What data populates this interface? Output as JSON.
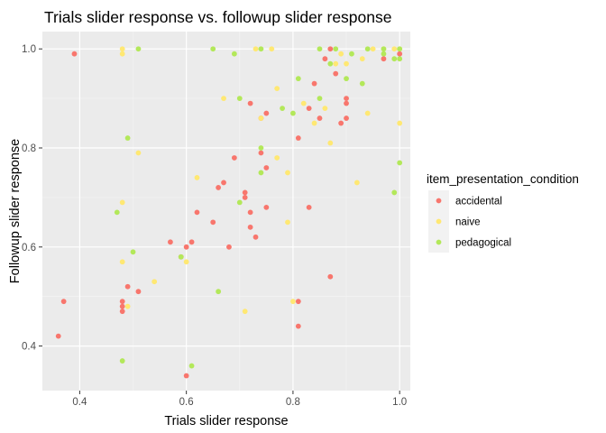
{
  "chart_data": {
    "type": "scatter",
    "title": "Trials slider response vs. followup slider response",
    "xlabel": "Trials slider response",
    "ylabel": "Followup slider response",
    "xlim": [
      0.33,
      1.02
    ],
    "ylim": [
      0.31,
      1.035
    ],
    "x_ticks": [
      0.4,
      0.6,
      0.8,
      1.0
    ],
    "x_tick_labels": [
      "0.4",
      "0.6",
      "0.8",
      "1.0"
    ],
    "y_ticks": [
      0.4,
      0.6,
      0.8,
      1.0
    ],
    "y_tick_labels": [
      "0.4",
      "0.6",
      "0.8",
      "1.0"
    ],
    "grid": true,
    "legend": {
      "title": "item_presentation_condition",
      "position": "right"
    },
    "series": [
      {
        "name": "accidental",
        "color": "#F8766D",
        "points": [
          [
            0.36,
            0.42
          ],
          [
            0.37,
            0.49
          ],
          [
            0.39,
            0.99
          ],
          [
            0.48,
            0.49
          ],
          [
            0.48,
            0.48
          ],
          [
            0.48,
            0.47
          ],
          [
            0.49,
            0.52
          ],
          [
            0.51,
            0.51
          ],
          [
            0.57,
            0.61
          ],
          [
            0.59,
            0.58
          ],
          [
            0.6,
            0.6
          ],
          [
            0.6,
            0.34
          ],
          [
            0.61,
            0.61
          ],
          [
            0.62,
            0.67
          ],
          [
            0.65,
            0.65
          ],
          [
            0.66,
            0.72
          ],
          [
            0.67,
            0.73
          ],
          [
            0.68,
            0.6
          ],
          [
            0.69,
            0.78
          ],
          [
            0.71,
            0.71
          ],
          [
            0.71,
            0.7
          ],
          [
            0.72,
            0.89
          ],
          [
            0.72,
            0.67
          ],
          [
            0.72,
            0.64
          ],
          [
            0.73,
            0.62
          ],
          [
            0.74,
            0.79
          ],
          [
            0.74,
            0.86
          ],
          [
            0.75,
            0.87
          ],
          [
            0.75,
            0.76
          ],
          [
            0.75,
            0.68
          ],
          [
            0.81,
            0.82
          ],
          [
            0.81,
            0.49
          ],
          [
            0.81,
            0.44
          ],
          [
            0.83,
            0.68
          ],
          [
            0.83,
            0.88
          ],
          [
            0.84,
            0.93
          ],
          [
            0.85,
            0.86
          ],
          [
            0.86,
            0.98
          ],
          [
            0.87,
            1.0
          ],
          [
            0.87,
            0.54
          ],
          [
            0.88,
            0.95
          ],
          [
            0.89,
            0.85
          ],
          [
            0.9,
            0.9
          ],
          [
            0.9,
            0.89
          ],
          [
            0.9,
            0.86
          ],
          [
            0.97,
            0.98
          ],
          [
            1.0,
            0.99
          ]
        ]
      },
      {
        "name": "naive",
        "color": "#FFE873",
        "points": [
          [
            0.48,
            1.0
          ],
          [
            0.48,
            0.99
          ],
          [
            0.48,
            0.69
          ],
          [
            0.48,
            0.57
          ],
          [
            0.49,
            0.48
          ],
          [
            0.51,
            0.79
          ],
          [
            0.54,
            0.53
          ],
          [
            0.6,
            0.57
          ],
          [
            0.62,
            0.74
          ],
          [
            0.67,
            0.9
          ],
          [
            0.71,
            0.47
          ],
          [
            0.73,
            1.0
          ],
          [
            0.74,
            0.86
          ],
          [
            0.76,
            1.0
          ],
          [
            0.77,
            0.92
          ],
          [
            0.77,
            0.78
          ],
          [
            0.79,
            0.75
          ],
          [
            0.79,
            0.65
          ],
          [
            0.8,
            0.49
          ],
          [
            0.82,
            0.89
          ],
          [
            0.84,
            0.85
          ],
          [
            0.86,
            0.88
          ],
          [
            0.87,
            0.81
          ],
          [
            0.88,
            0.97
          ],
          [
            0.89,
            0.99
          ],
          [
            0.9,
            0.97
          ],
          [
            0.92,
            0.73
          ],
          [
            0.93,
            0.98
          ],
          [
            0.94,
            0.87
          ],
          [
            0.95,
            1.0
          ],
          [
            0.97,
            1.0
          ],
          [
            0.99,
            1.0
          ],
          [
            1.0,
            1.0
          ],
          [
            1.0,
            0.85
          ]
        ]
      },
      {
        "name": "pedagogical",
        "color": "#B3E85A",
        "points": [
          [
            0.47,
            0.67
          ],
          [
            0.48,
            0.37
          ],
          [
            0.49,
            0.82
          ],
          [
            0.5,
            0.59
          ],
          [
            0.51,
            1.0
          ],
          [
            0.59,
            0.58
          ],
          [
            0.61,
            0.36
          ],
          [
            0.65,
            1.0
          ],
          [
            0.66,
            0.51
          ],
          [
            0.69,
            0.99
          ],
          [
            0.7,
            0.9
          ],
          [
            0.7,
            0.69
          ],
          [
            0.74,
            1.0
          ],
          [
            0.74,
            0.8
          ],
          [
            0.74,
            0.75
          ],
          [
            0.78,
            0.88
          ],
          [
            0.8,
            0.87
          ],
          [
            0.81,
            0.94
          ],
          [
            0.85,
            1.0
          ],
          [
            0.85,
            0.9
          ],
          [
            0.87,
            0.97
          ],
          [
            0.88,
            1.0
          ],
          [
            0.9,
            0.94
          ],
          [
            0.91,
            0.99
          ],
          [
            0.93,
            0.93
          ],
          [
            0.94,
            1.0
          ],
          [
            0.97,
            1.0
          ],
          [
            0.97,
            0.99
          ],
          [
            0.99,
            0.98
          ],
          [
            0.99,
            0.71
          ],
          [
            1.0,
            1.0
          ],
          [
            1.0,
            0.98
          ],
          [
            1.0,
            0.77
          ]
        ]
      }
    ]
  }
}
